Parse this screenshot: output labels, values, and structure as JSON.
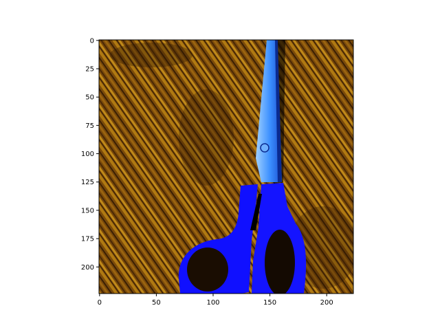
{
  "figure": {
    "background": "#ffffff",
    "image": {
      "subject": "blue-handled scissors on wood-grain surface",
      "colors": {
        "wood_dark": "#3a1f04",
        "wood_mid": "#7a4a0a",
        "wood_light": "#b07a12",
        "handle": "#1010ff",
        "handle_dark": "#0606b8",
        "blade": "#3b8fff",
        "blade_light": "#9fd0ff",
        "shadow": "#000000"
      }
    },
    "axes": {
      "x": {
        "range": [
          0,
          224
        ],
        "ticks": [
          0,
          50,
          100,
          150,
          200
        ],
        "tick_labels": [
          "0",
          "50",
          "100",
          "150",
          "200"
        ]
      },
      "y": {
        "range": [
          0,
          224
        ],
        "inverted": true,
        "ticks": [
          0,
          25,
          50,
          75,
          100,
          125,
          150,
          175,
          200
        ],
        "tick_labels": [
          "0",
          "25",
          "50",
          "75",
          "100",
          "125",
          "150",
          "175",
          "200"
        ]
      }
    }
  }
}
